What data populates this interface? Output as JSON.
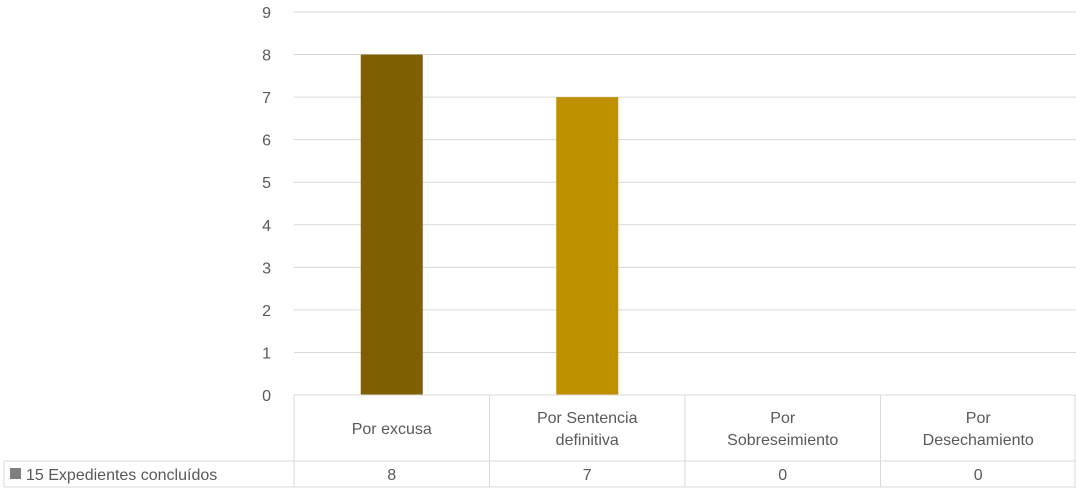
{
  "chart_data": {
    "type": "bar",
    "categories": [
      [
        "Por excusa"
      ],
      [
        "Por Sentencia",
        "definitiva"
      ],
      [
        "Por",
        "Sobreseimiento"
      ],
      [
        "Por",
        "Desechamiento"
      ]
    ],
    "series": [
      {
        "name": "15 Expedientes concluídos",
        "values": [
          8,
          7,
          0,
          0
        ]
      }
    ],
    "bar_colors": [
      "#7f6000",
      "#bf9000",
      "#7f6000",
      "#7f6000"
    ],
    "legend_swatch_color": "#7f7f7f",
    "gridline_color": "#d9d9d9",
    "ylim": [
      0,
      9
    ],
    "yticks": [
      0,
      1,
      2,
      3,
      4,
      5,
      6,
      7,
      8,
      9
    ],
    "grid": true,
    "data_table": true,
    "title": "",
    "xlabel": "",
    "ylabel": ""
  }
}
